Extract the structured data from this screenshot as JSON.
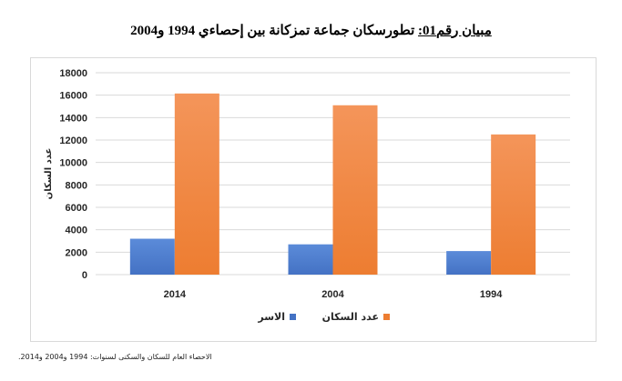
{
  "title": {
    "prefix": "مبيان رقم01:",
    "text": " تطورسكان جماعة تمزكانة بين إحصاءي 1994 و2004"
  },
  "source": "الاحصاء العام للسكان والسكنى لسنوات: 1994 و2004 و2014.",
  "colors": {
    "households": "#4472C4",
    "population": "#ED7D31",
    "grid": "#d9d9d9"
  },
  "chart_data": {
    "type": "bar",
    "categories": [
      "2014",
      "2004",
      "1994"
    ],
    "series": [
      {
        "name": "الاسر",
        "values": [
          3200,
          2700,
          2100
        ]
      },
      {
        "name": "عدد السكان",
        "values": [
          16150,
          15100,
          12500
        ]
      }
    ],
    "ylabel": "عدد السكان",
    "xlabel": "",
    "ylim": [
      0,
      18000
    ],
    "yticks": [
      0,
      2000,
      4000,
      6000,
      8000,
      10000,
      12000,
      14000,
      16000,
      18000
    ],
    "grid": true,
    "legend_position": "bottom"
  }
}
